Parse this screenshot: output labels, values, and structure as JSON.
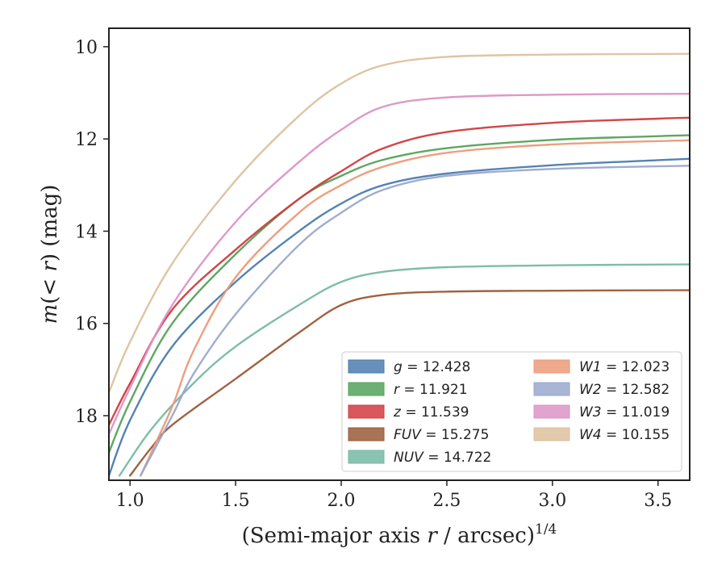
{
  "chart_data": {
    "type": "line",
    "xlabel_text": "(Semi-major axis ",
    "xlabel_var": "r",
    "xlabel_unit": " / arcsec)",
    "xlabel_exp": "1/4",
    "ylabel_var": "m",
    "ylabel_text": "(< ",
    "ylabel_var2": "r",
    "ylabel_text2": ") (mag)",
    "xlim": [
      0.9,
      3.65
    ],
    "ylim": [
      19.4,
      9.6
    ],
    "y_inverted": true,
    "xticks": [
      1.0,
      1.5,
      2.0,
      2.5,
      3.0,
      3.5
    ],
    "xtick_labels": [
      "1.0",
      "1.5",
      "2.0",
      "2.5",
      "3.0",
      "3.5"
    ],
    "yticks": [
      10,
      12,
      14,
      16,
      18
    ],
    "ytick_labels": [
      "10",
      "12",
      "14",
      "16",
      "18"
    ],
    "grid": false,
    "legend_placement": "lower-right",
    "series": [
      {
        "name": "g = 12.428",
        "band": "g",
        "value": "12.428",
        "color": "#4c7cae",
        "x": [
          0.9,
          1.0,
          1.2,
          1.5,
          1.8,
          2.0,
          2.2,
          2.5,
          3.0,
          3.5,
          3.65
        ],
        "y": [
          19.3,
          18.1,
          16.5,
          15.1,
          14.0,
          13.4,
          13.0,
          12.75,
          12.57,
          12.46,
          12.43
        ]
      },
      {
        "name": "r = 11.921",
        "band": "r",
        "value": "11.921",
        "color": "#55a25a",
        "x": [
          0.9,
          1.0,
          1.2,
          1.5,
          1.8,
          2.0,
          2.2,
          2.5,
          3.0,
          3.5,
          3.65
        ],
        "y": [
          18.8,
          17.7,
          16.0,
          14.5,
          13.3,
          12.8,
          12.45,
          12.2,
          12.02,
          11.94,
          11.92
        ]
      },
      {
        "name": "z = 11.539",
        "band": "z",
        "value": "11.539",
        "color": "#d13b3e",
        "x": [
          0.9,
          1.0,
          1.2,
          1.5,
          1.8,
          2.0,
          2.2,
          2.5,
          3.0,
          3.5,
          3.65
        ],
        "y": [
          18.2,
          17.3,
          15.7,
          14.4,
          13.3,
          12.7,
          12.2,
          11.85,
          11.65,
          11.56,
          11.54
        ]
      },
      {
        "name": "FUV = 15.275",
        "band": "FUV",
        "value": "15.275",
        "color": "#9a5b38",
        "x": [
          1.0,
          1.1,
          1.2,
          1.5,
          1.8,
          2.0,
          2.2,
          2.5,
          3.0,
          3.65
        ],
        "y": [
          19.3,
          18.7,
          18.2,
          17.2,
          16.2,
          15.6,
          15.38,
          15.31,
          15.29,
          15.28
        ]
      },
      {
        "name": "NUV = 14.722",
        "band": "NUV",
        "value": "14.722",
        "color": "#76b9a4",
        "x": [
          0.95,
          1.1,
          1.3,
          1.5,
          1.8,
          2.0,
          2.2,
          2.5,
          3.0,
          3.65
        ],
        "y": [
          19.3,
          18.3,
          17.3,
          16.5,
          15.6,
          15.1,
          14.88,
          14.78,
          14.74,
          14.72
        ]
      },
      {
        "name": "W1 = 12.023",
        "band": "W1",
        "value": "12.023",
        "color": "#ec9a78",
        "x": [
          1.05,
          1.2,
          1.3,
          1.5,
          1.8,
          2.0,
          2.2,
          2.5,
          3.0,
          3.65
        ],
        "y": [
          19.3,
          17.8,
          16.6,
          15.0,
          13.6,
          13.0,
          12.6,
          12.3,
          12.12,
          12.03
        ]
      },
      {
        "name": "W2 = 12.582",
        "band": "W2",
        "value": "12.582",
        "color": "#9aa8cc",
        "x": [
          1.05,
          1.2,
          1.3,
          1.5,
          1.8,
          2.0,
          2.2,
          2.5,
          3.0,
          3.65
        ],
        "y": [
          19.3,
          18.0,
          17.1,
          15.8,
          14.3,
          13.6,
          13.1,
          12.8,
          12.65,
          12.58
        ]
      },
      {
        "name": "W3 = 11.019",
        "band": "W3",
        "value": "11.019",
        "color": "#dc94c6",
        "x": [
          0.9,
          1.0,
          1.2,
          1.5,
          1.8,
          2.0,
          2.2,
          2.5,
          3.0,
          3.65
        ],
        "y": [
          18.4,
          17.4,
          15.6,
          13.8,
          12.5,
          11.8,
          11.3,
          11.1,
          11.04,
          11.02
        ]
      },
      {
        "name": "W4 = 10.155",
        "band": "W4",
        "value": "10.155",
        "color": "#dcc29e",
        "x": [
          0.9,
          1.0,
          1.2,
          1.5,
          1.8,
          2.0,
          2.2,
          2.5,
          3.0,
          3.65
        ],
        "y": [
          17.5,
          16.4,
          14.7,
          12.9,
          11.5,
          10.8,
          10.4,
          10.22,
          10.17,
          10.155
        ]
      }
    ]
  }
}
